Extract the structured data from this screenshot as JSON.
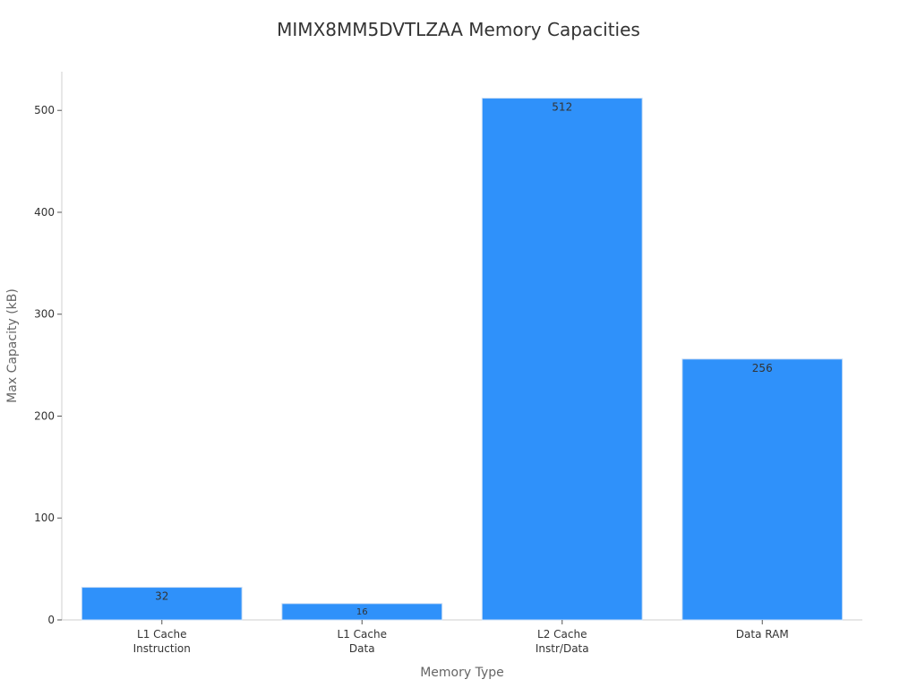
{
  "chart_data": {
    "type": "bar",
    "title": "MIMX8MM5DVTLZAA Memory Capacities",
    "xlabel": "Memory Type",
    "ylabel": "Max Capacity (kB)",
    "categories": [
      [
        "L1 Cache",
        "Instruction"
      ],
      [
        "L1 Cache",
        "Data"
      ],
      [
        "L2 Cache",
        "Instr/Data"
      ],
      [
        "Data RAM"
      ]
    ],
    "values": [
      32,
      16,
      512,
      256
    ],
    "data_labels": [
      "32",
      "16",
      "512",
      "256"
    ],
    "yticks": [
      0,
      100,
      200,
      300,
      400,
      500
    ],
    "ylim": [
      0,
      538
    ],
    "grid": false,
    "colors": {
      "bar": "#2f91fa",
      "bar_edge": "#c9ddf5"
    }
  }
}
